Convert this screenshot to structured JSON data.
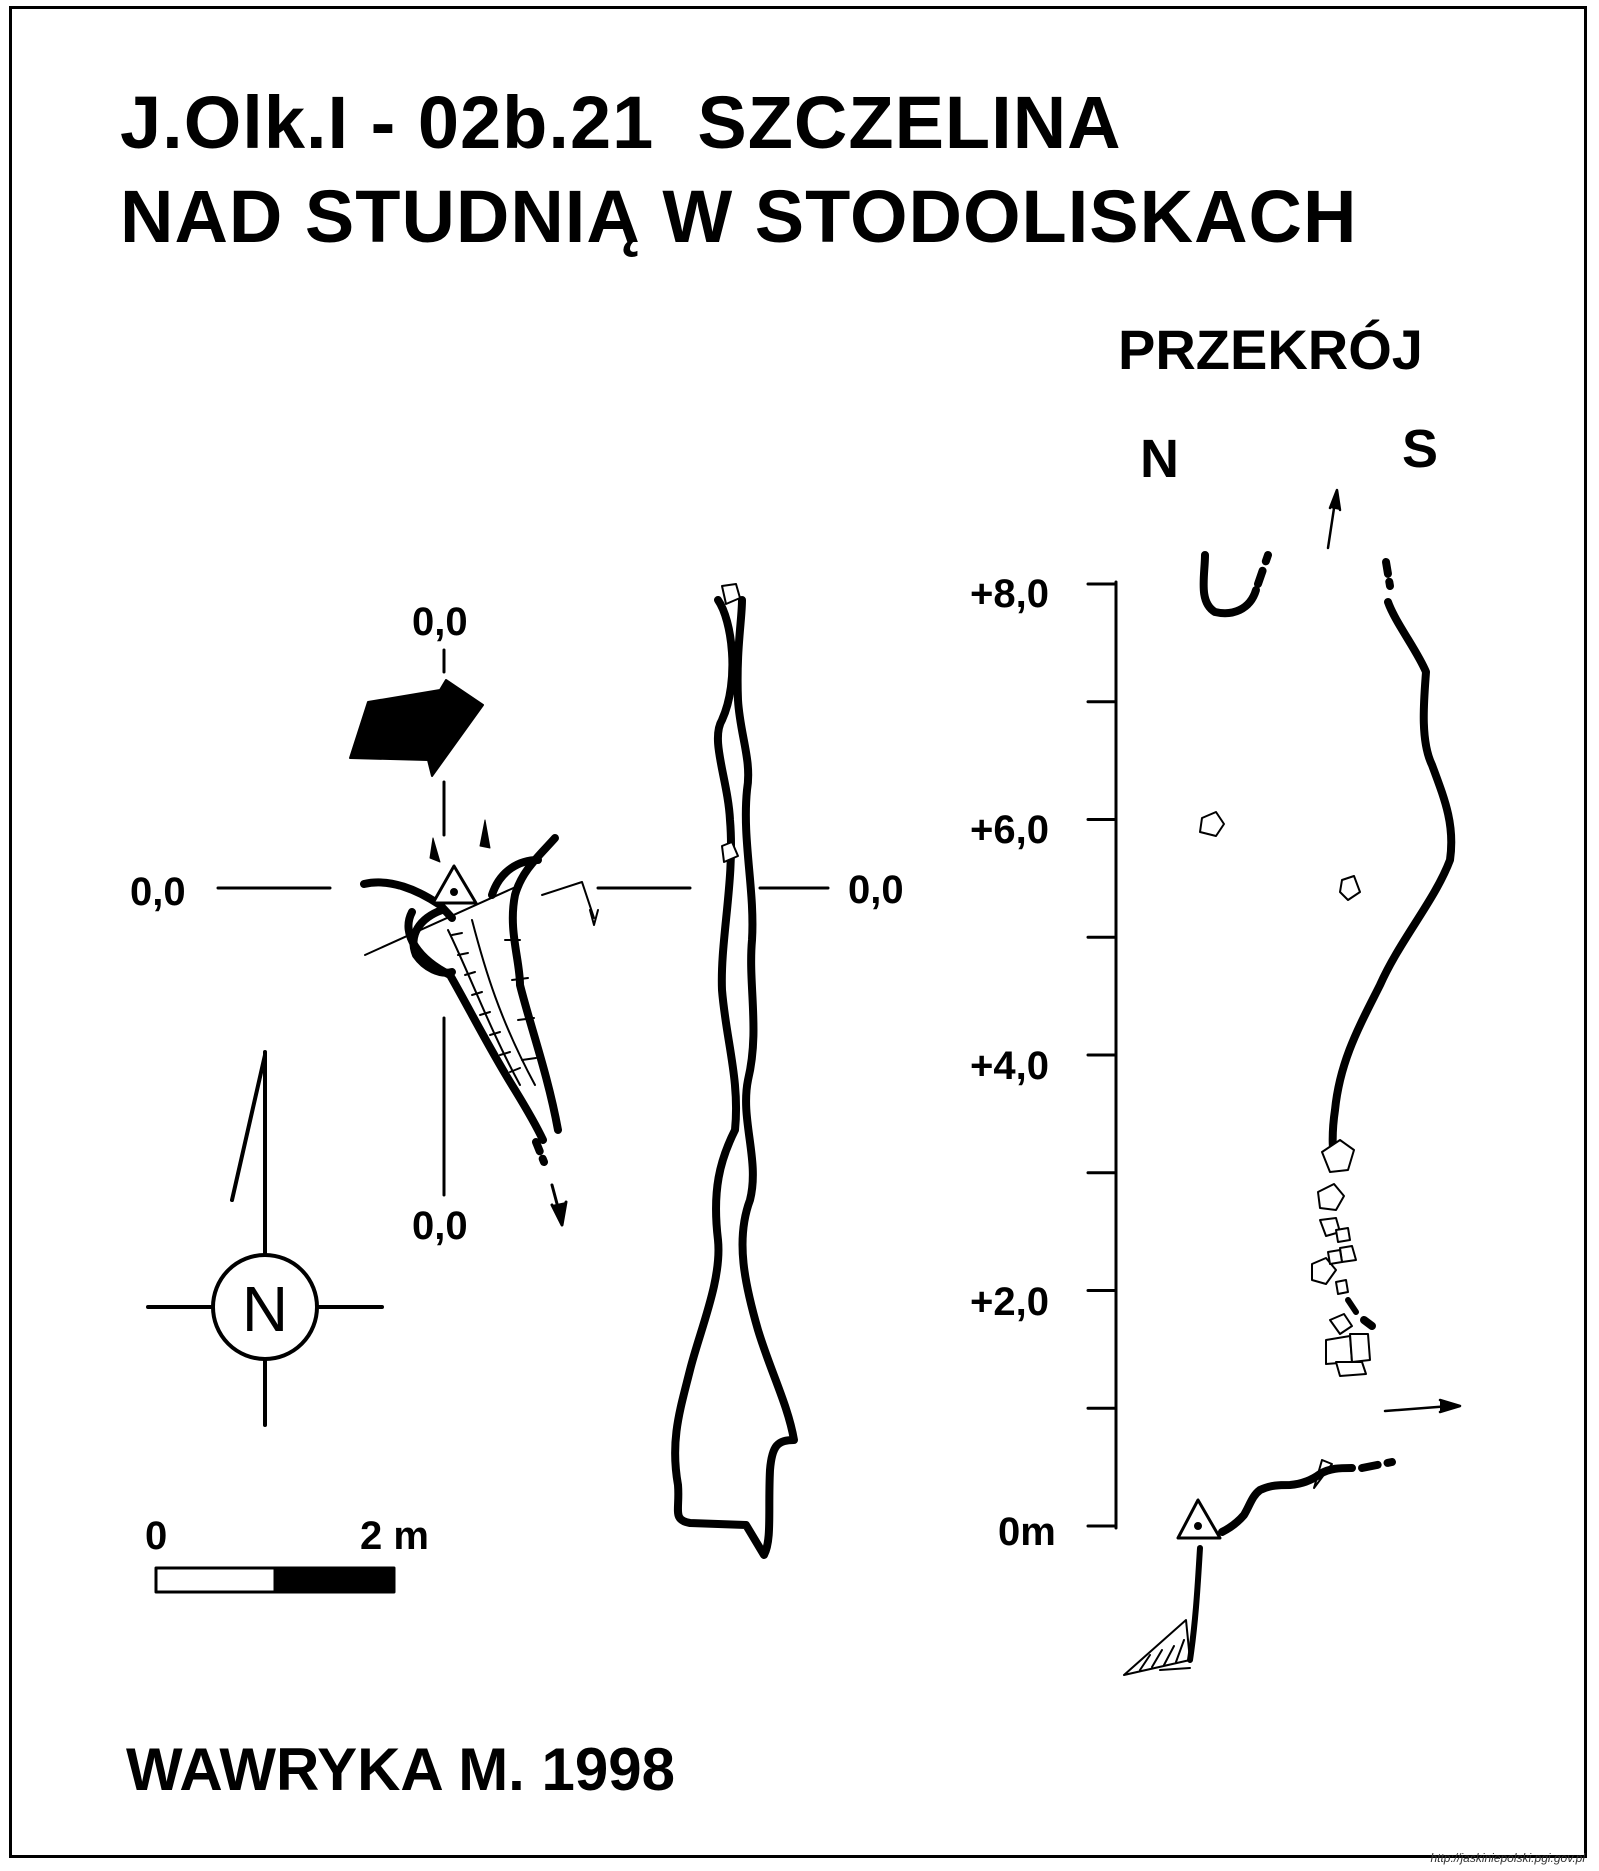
{
  "title": {
    "line1": "J.Olk.I - 02b.21  SZCZELINA",
    "line2": "NAD STUDNIĄ W STODOLISKACH"
  },
  "plan": {
    "section_marks": {
      "top": "0,0",
      "left": "0,0",
      "right": "0,0",
      "bottom": "0,0"
    },
    "north_symbol": "N",
    "scale": {
      "start": "0",
      "end": "2 m"
    }
  },
  "profile": {
    "heading": "PRZEKRÓJ",
    "left_direction": "N",
    "right_direction": "S",
    "axis_labels": [
      "+8,0",
      "+6,0",
      "+4,0",
      "+2,0",
      "0m"
    ],
    "ticks": [
      0,
      1,
      2,
      3,
      4,
      5,
      6,
      7,
      8
    ]
  },
  "author": "WAWRYKA M. 1998",
  "source_url": "http://jaskiniepolski.pgi.gov.pl",
  "colors": {
    "ink": "#000000",
    "paper": "#ffffff"
  },
  "icons": [
    "entrance-triangle-icon",
    "north-compass-icon",
    "entrance-arrow-icon",
    "boulder-icon"
  ]
}
